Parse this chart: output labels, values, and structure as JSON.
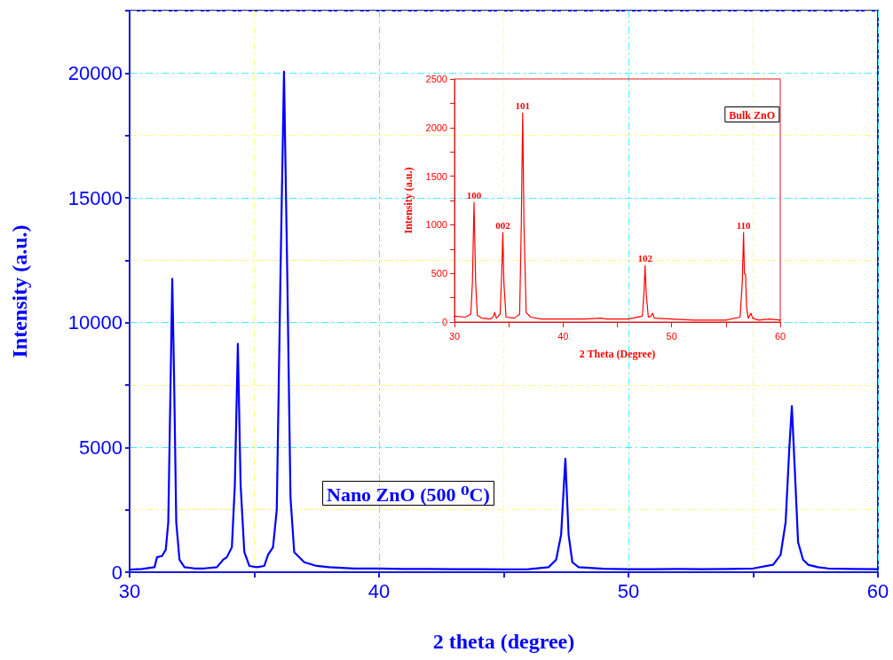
{
  "chart_data": [
    {
      "type": "line",
      "xlabel": "2 theta (degree)",
      "ylabel": "Intensity (a.u.)",
      "xlim": [
        30,
        60
      ],
      "xticks": [
        30,
        {
          "value": 35,
          "label": null
        },
        40,
        {
          "value": 45,
          "label": null
        },
        50,
        {
          "value": 55,
          "label": null
        },
        60
      ],
      "ylim": [
        0,
        22500
      ],
      "yticks": [
        0,
        {
          "value": 2500,
          "label": null
        },
        5000,
        {
          "value": 7500,
          "label": null
        },
        10000,
        {
          "value": 12500,
          "label": null
        },
        15000,
        {
          "value": 17500,
          "label": null
        },
        20000,
        {
          "value": 22500,
          "label": null
        }
      ],
      "grid": true,
      "marker": "none",
      "line_style": "solid",
      "annotations": [
        "Nano ZnO (500 ⁰C)"
      ],
      "x": [
        30,
        30.5,
        31,
        31.1,
        31.3,
        31.45,
        31.55,
        31.65,
        31.71,
        31.78,
        31.87,
        32.0,
        32.2,
        32.6,
        33,
        33.5,
        33.75,
        33.9,
        34.1,
        34.22,
        34.34,
        34.45,
        34.6,
        34.8,
        35.1,
        35.4,
        35.55,
        35.75,
        35.9,
        36.05,
        36.19,
        36.32,
        36.45,
        36.6,
        37,
        37.5,
        38,
        39,
        40,
        41,
        42,
        43,
        44,
        45,
        46,
        46.8,
        47.1,
        47.3,
        47.47,
        47.6,
        47.75,
        48,
        49,
        50,
        51,
        52,
        53,
        54,
        55,
        55.8,
        56.1,
        56.3,
        56.45,
        56.55,
        56.65,
        56.8,
        57.0,
        57.2,
        57.6,
        58,
        59,
        60
      ],
      "series": [
        {
          "color": "#0000ff",
          "values": [
            100,
            130,
            200,
            600,
            650,
            900,
            2000,
            8000,
            11750,
            8000,
            2000,
            500,
            200,
            150,
            150,
            200,
            500,
            600,
            1000,
            3500,
            9150,
            3500,
            800,
            250,
            200,
            250,
            700,
            1000,
            2500,
            12000,
            20050,
            12000,
            3000,
            800,
            400,
            250,
            200,
            150,
            150,
            130,
            130,
            120,
            120,
            110,
            120,
            200,
            500,
            1500,
            4550,
            1500,
            400,
            200,
            140,
            120,
            120,
            130,
            120,
            130,
            150,
            300,
            700,
            2000,
            5000,
            6650,
            4500,
            1200,
            500,
            300,
            200,
            150,
            130,
            120
          ]
        }
      ]
    },
    {
      "type": "line",
      "xlabel": "2 Theta (Degree)",
      "ylabel": "Intensity (a.u.)",
      "xlim": [
        30,
        60
      ],
      "xticks": [
        30,
        {
          "value": 35,
          "label": null
        },
        40,
        {
          "value": 45,
          "label": null
        },
        50,
        {
          "value": 55,
          "label": null
        },
        60
      ],
      "ylim": [
        0,
        2500
      ],
      "yticks": [
        0,
        {
          "value": 250,
          "label": null
        },
        500,
        {
          "value": 750,
          "label": null
        },
        1000,
        {
          "value": 1250,
          "label": null
        },
        1500,
        {
          "value": 1750,
          "label": null
        },
        2000,
        {
          "value": 2250,
          "label": null
        },
        2500
      ],
      "marker": "none",
      "line_style": "solid",
      "annotations": [
        "Bulk ZnO",
        {
          "text": "100",
          "x": 31.8,
          "y": 1230
        },
        {
          "text": "002",
          "x": 34.45,
          "y": 920
        },
        {
          "text": "101",
          "x": 36.28,
          "y": 2150
        },
        {
          "text": "102",
          "x": 47.55,
          "y": 580
        },
        {
          "text": "110",
          "x": 56.62,
          "y": 920
        }
      ],
      "x": [
        30,
        31,
        31.5,
        31.65,
        31.8,
        31.95,
        32.1,
        32.5,
        33.3,
        33.6,
        33.7,
        33.85,
        34.2,
        34.35,
        34.45,
        34.55,
        34.75,
        35.5,
        36.0,
        36.15,
        36.28,
        36.4,
        36.6,
        37,
        38,
        40,
        42,
        43.5,
        44,
        46,
        47.3,
        47.45,
        47.55,
        47.65,
        47.85,
        48.1,
        48.25,
        48.4,
        50,
        52,
        54,
        55,
        56.3,
        56.5,
        56.62,
        56.7,
        56.8,
        56.9,
        57.05,
        57.3,
        57.45,
        58,
        59,
        60
      ],
      "series": [
        {
          "color": "#ff0000",
          "values": [
            60,
            50,
            80,
            400,
            1230,
            400,
            70,
            40,
            30,
            60,
            100,
            40,
            80,
            500,
            920,
            400,
            50,
            40,
            80,
            1000,
            2150,
            1000,
            100,
            50,
            30,
            30,
            30,
            40,
            30,
            30,
            60,
            300,
            580,
            300,
            50,
            60,
            90,
            40,
            30,
            20,
            20,
            20,
            50,
            400,
            920,
            500,
            490,
            150,
            40,
            90,
            40,
            20,
            30,
            20
          ]
        }
      ]
    }
  ]
}
